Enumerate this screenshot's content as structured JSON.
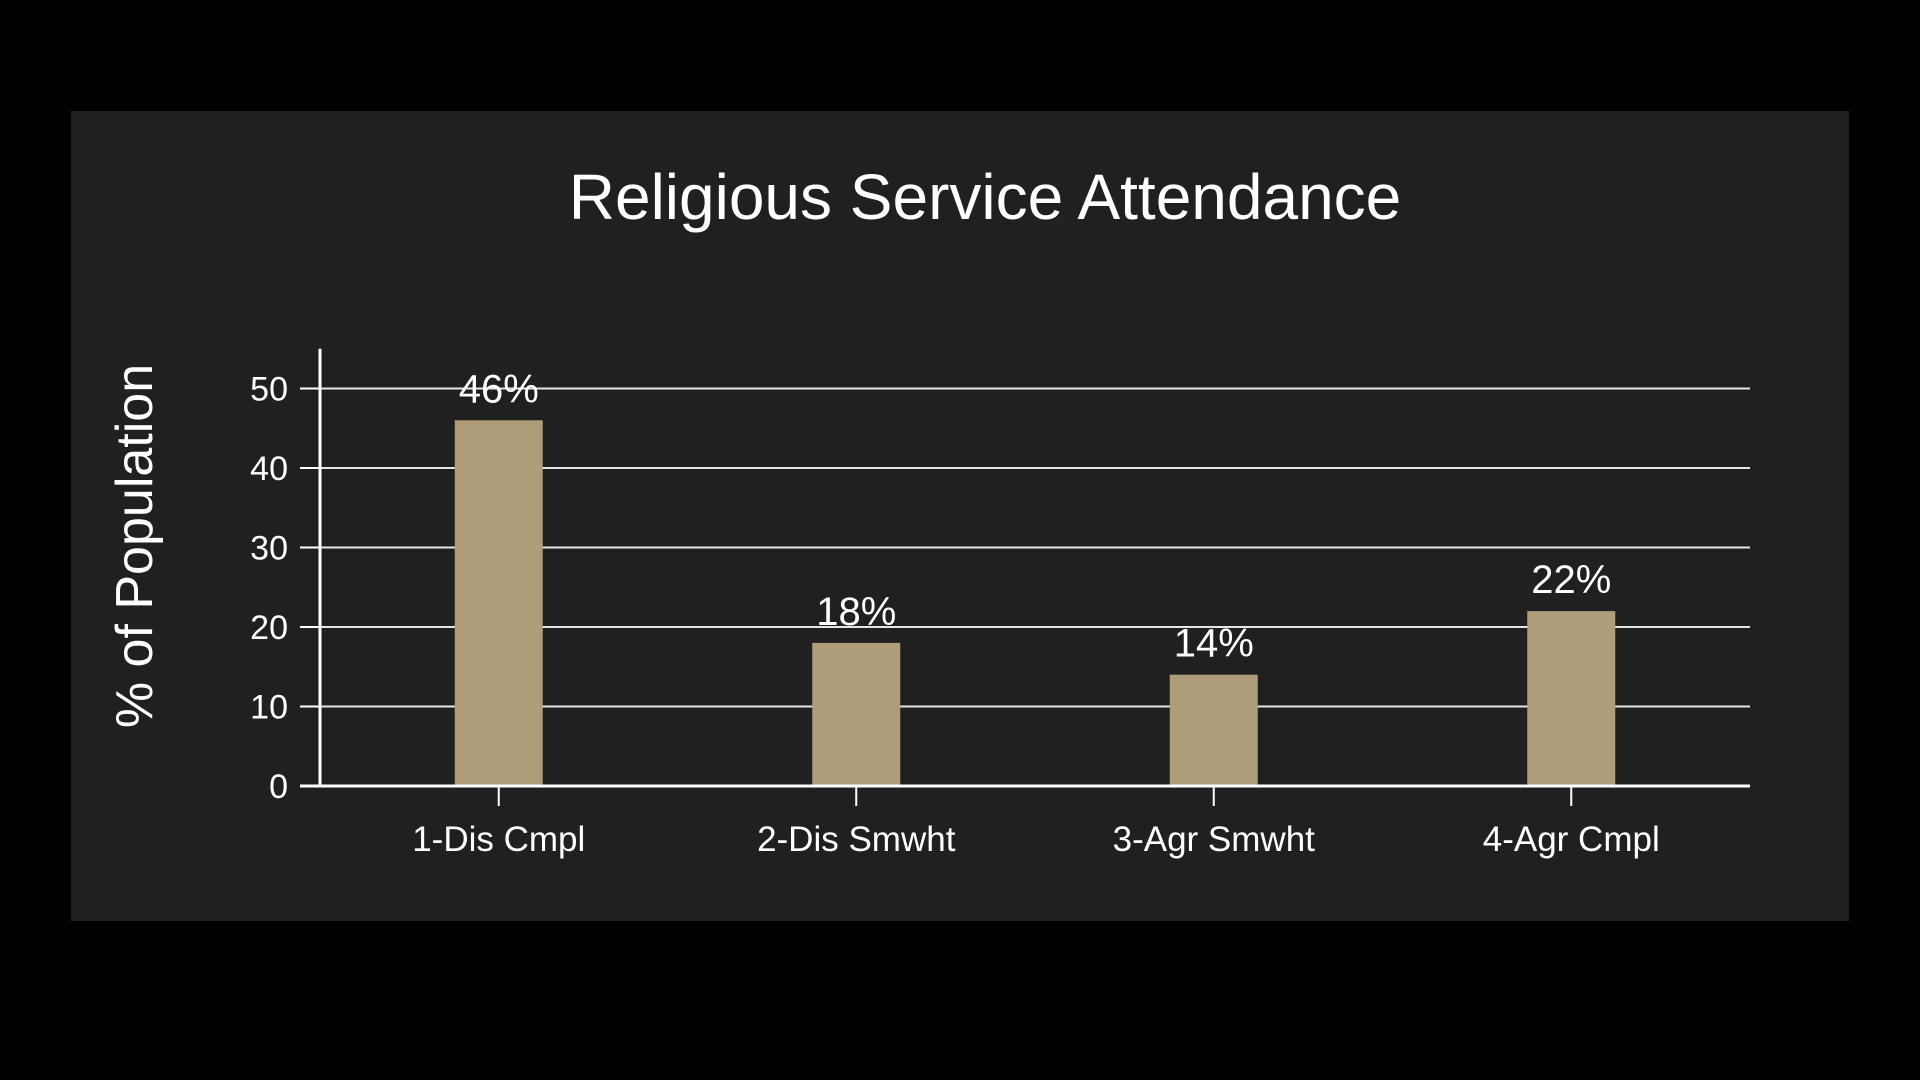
{
  "chart_data": {
    "type": "bar",
    "title": "Religious Service Attendance",
    "xlabel": "",
    "ylabel": "% of Population",
    "categories": [
      "1-Dis Cmpl",
      "2-Dis Smwht",
      "3-Agr Smwht",
      "4-Agr Cmpl"
    ],
    "values": [
      46,
      18,
      14,
      22
    ],
    "data_labels": [
      "46%",
      "18%",
      "14%",
      "22%"
    ],
    "ylim": [
      0,
      55
    ],
    "yticks": [
      0,
      10,
      20,
      30,
      40,
      50
    ],
    "grid": true,
    "legend": "none"
  },
  "colors": {
    "page_background": "#000000",
    "panel_background": "#202020",
    "bar": "#ae9d78",
    "text": "#ffffff",
    "grid": "#e6e6e6"
  }
}
